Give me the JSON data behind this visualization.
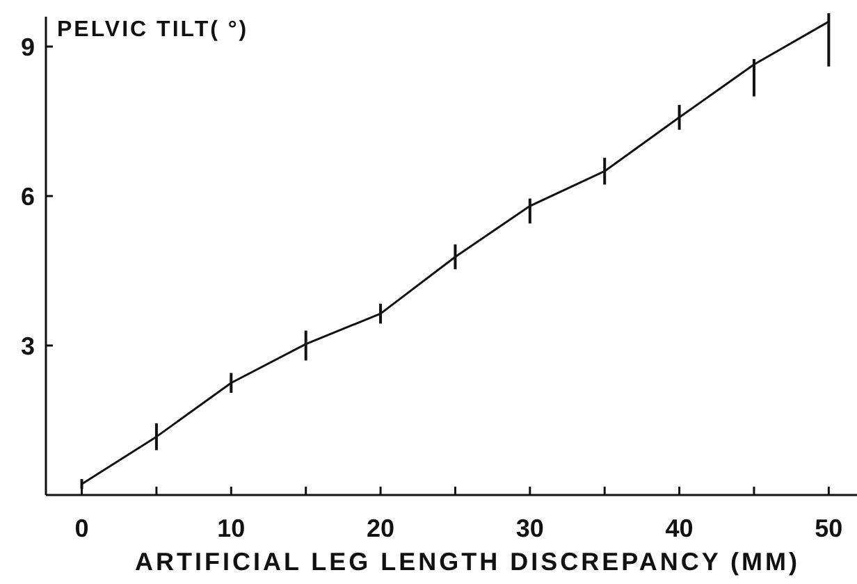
{
  "chart_data": {
    "type": "line",
    "ylabel": "PELVIC TILT( °)",
    "xlabel": "ARTIFICIAL LEG LENGTH DISCREPANCY (MM)",
    "x": [
      0,
      5,
      10,
      15,
      20,
      25,
      30,
      35,
      40,
      45,
      50
    ],
    "series": [
      {
        "color": "#111111",
        "values": [
          0.22,
          1.17,
          2.25,
          3.03,
          3.64,
          4.78,
          5.8,
          6.5,
          7.58,
          8.64,
          9.5
        ],
        "errors": [
          0.1,
          0.27,
          0.2,
          [
            2.7,
            3.3
          ],
          0.2,
          0.25,
          [
            5.45,
            5.95
          ],
          0.27,
          0.25,
          [
            8.0,
            8.75
          ],
          [
            8.6,
            9.67
          ]
        ]
      }
    ],
    "xlim": [
      -2.4,
      51.8
    ],
    "ylim": [
      0,
      9.6
    ],
    "xticks": [
      0,
      {
        "value": 5,
        "label": null
      },
      10,
      {
        "value": 15,
        "label": null
      },
      20,
      {
        "value": 25,
        "label": null
      },
      30,
      {
        "value": 35,
        "label": null
      },
      40,
      {
        "value": 45,
        "label": null
      },
      50
    ],
    "yticks": [
      3,
      6,
      9
    ],
    "grid": false,
    "marker": "none",
    "line_style": "solid"
  }
}
